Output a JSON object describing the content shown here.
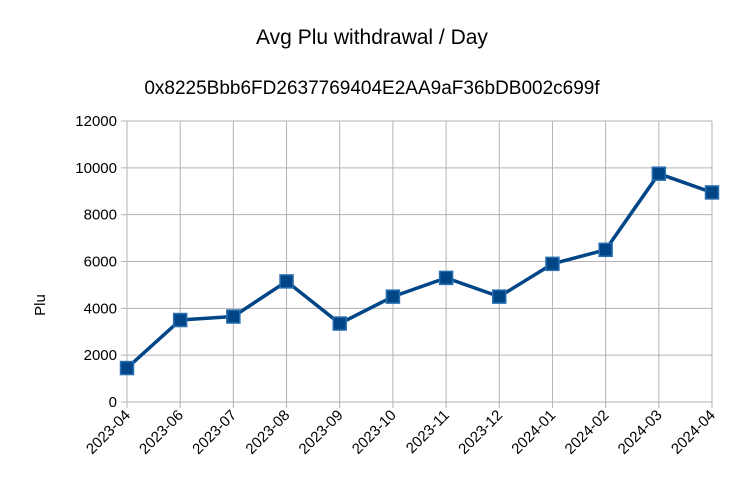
{
  "chart_data": {
    "type": "line",
    "title": "Avg Plu withdrawal / Day",
    "subtitle": "0x8225Bbb6FD2637769404E2AA9aF36bDB002c699f",
    "xlabel": "",
    "ylabel": "Plu",
    "ylim": [
      0,
      12000
    ],
    "yticks": [
      0,
      2000,
      4000,
      6000,
      8000,
      10000,
      12000
    ],
    "grid": true,
    "categories": [
      "2023-04",
      "2023-06",
      "2023-07",
      "2023-08",
      "2023-09",
      "2023-10",
      "2023-11",
      "2023-12",
      "2024-01",
      "2024-02",
      "2024-03",
      "2024-04"
    ],
    "series": [
      {
        "values": [
          1450,
          3500,
          3650,
          5150,
          3350,
          4500,
          5300,
          4500,
          5900,
          6500,
          9750,
          8950
        ],
        "color": "#004586"
      }
    ]
  }
}
